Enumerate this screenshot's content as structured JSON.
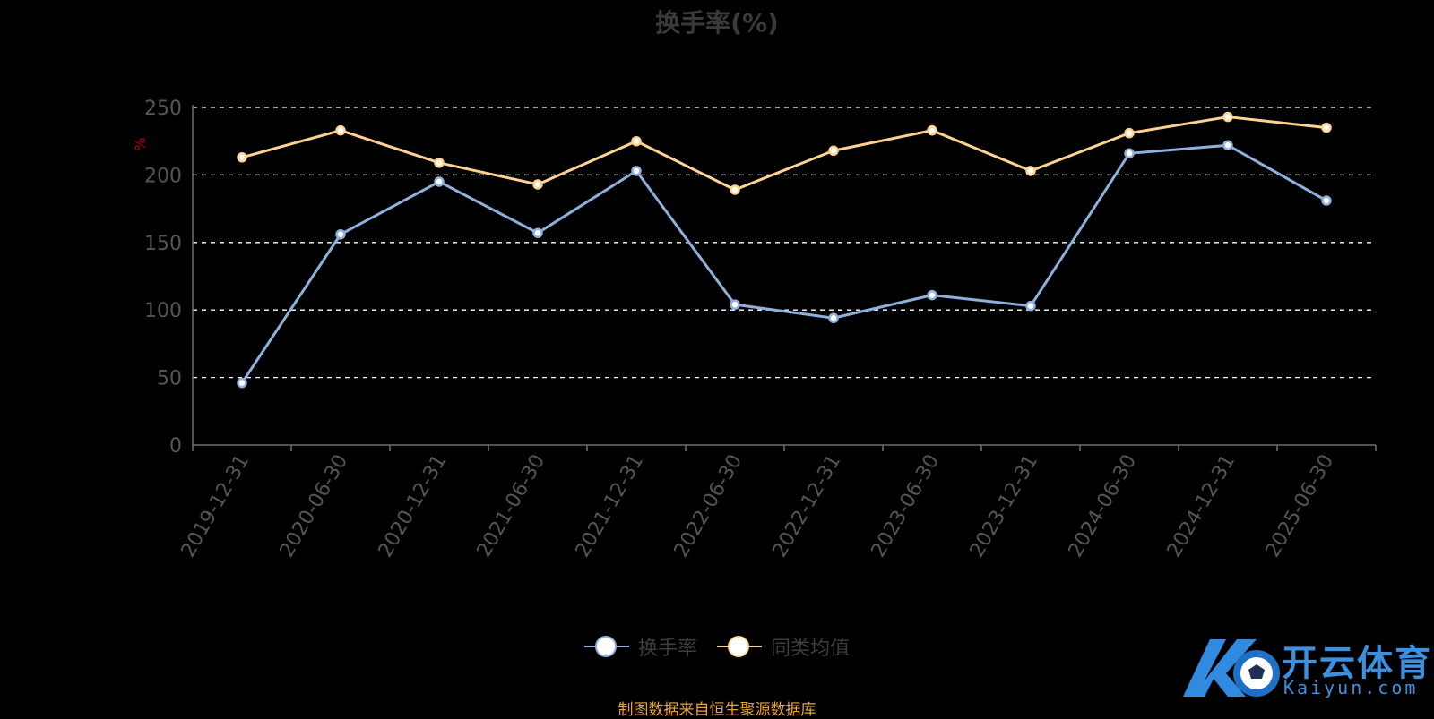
{
  "colors": {
    "series_turnover": "#8fb0dc",
    "series_peer_avg": "#ffd38f",
    "axis": "#6e6e6e",
    "tick_label": "#555555",
    "grid": "#ffffff",
    "unit_label": "#c00000",
    "source_note": "#e8a33c",
    "brand": "#3d8fe0"
  },
  "chart_data": {
    "type": "line",
    "title": "换手率(%)",
    "ylabel": "%",
    "ylim": [
      0,
      250
    ],
    "yticks": [
      "0",
      "50",
      "100",
      "150",
      "200",
      "250"
    ],
    "grid": "horizontal dashed",
    "legend_position": "bottom-center",
    "categories": [
      "2019-12-31",
      "2020-06-30",
      "2020-12-31",
      "2021-06-30",
      "2021-12-31",
      "2022-06-30",
      "2022-12-31",
      "2023-06-30",
      "2023-12-31",
      "2024-06-30",
      "2024-12-31",
      "2025-06-30"
    ],
    "series": [
      {
        "name": "换手率",
        "color": "#8fb0dc",
        "values": [
          46,
          156,
          195,
          157,
          203,
          104,
          94,
          111,
          103,
          216,
          222,
          181
        ]
      },
      {
        "name": "同类均值",
        "color": "#ffd38f",
        "values": [
          213,
          233,
          209,
          193,
          225,
          189,
          218,
          233,
          203,
          231,
          243,
          235
        ]
      }
    ]
  },
  "legend": {
    "items": [
      {
        "label": "换手率",
        "color": "#8fb0dc"
      },
      {
        "label": "同类均值",
        "color": "#ffd38f"
      }
    ]
  },
  "source_note": "制图数据来自恒生聚源数据库",
  "watermark": {
    "name": "开云体育",
    "domain": "Kaiyun.com"
  }
}
